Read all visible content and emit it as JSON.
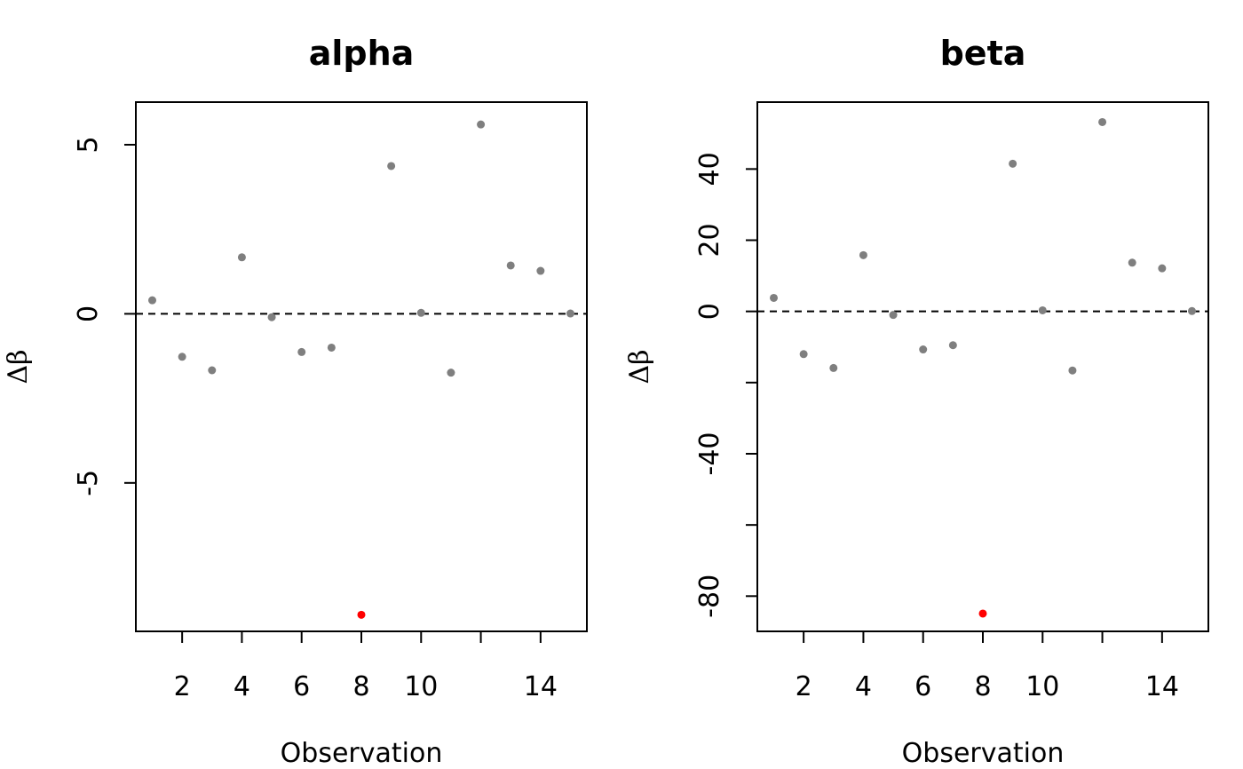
{
  "chart_data": [
    {
      "type": "scatter",
      "title": "alpha",
      "xlabel": "Observation",
      "ylabel": "Δβ",
      "xlim": [
        0.45,
        15.55
      ],
      "ylim": [
        -9.39,
        6.26
      ],
      "x_ticks": [
        2,
        4,
        6,
        8,
        10,
        12,
        14
      ],
      "x_tick_labels": [
        "2",
        "4",
        "6",
        "8",
        "10",
        "",
        "14"
      ],
      "y_ticks": [
        -5,
        0,
        5
      ],
      "y_tick_labels": [
        "-5",
        "0",
        "5"
      ],
      "reference_line": {
        "y": 0,
        "style": "dashed"
      },
      "point_color": "#7f7f7f",
      "highlight_color": "#ff0000",
      "highlight_indices": [
        7
      ],
      "grid": false,
      "points": [
        {
          "x": 1,
          "y": 0.4
        },
        {
          "x": 2,
          "y": -1.27
        },
        {
          "x": 3,
          "y": -1.67
        },
        {
          "x": 4,
          "y": 1.67
        },
        {
          "x": 5,
          "y": -0.1
        },
        {
          "x": 6,
          "y": -1.13
        },
        {
          "x": 7,
          "y": -1.0
        },
        {
          "x": 8,
          "y": -8.9
        },
        {
          "x": 9,
          "y": 4.37
        },
        {
          "x": 10,
          "y": 0.03
        },
        {
          "x": 11,
          "y": -1.74
        },
        {
          "x": 12,
          "y": 5.6
        },
        {
          "x": 13,
          "y": 1.43
        },
        {
          "x": 14,
          "y": 1.27
        },
        {
          "x": 15,
          "y": 0.01
        }
      ]
    },
    {
      "type": "scatter",
      "title": "beta",
      "xlabel": "Observation",
      "ylabel": "Δβ",
      "xlim": [
        0.45,
        15.55
      ],
      "ylim": [
        -89.9,
        58.8
      ],
      "x_ticks": [
        2,
        4,
        6,
        8,
        10,
        12,
        14
      ],
      "x_tick_labels": [
        "2",
        "4",
        "6",
        "8",
        "10",
        "",
        "14"
      ],
      "y_ticks": [
        -80,
        -60,
        -40,
        -20,
        0,
        20,
        40
      ],
      "y_tick_labels": [
        "-80",
        "",
        "-40",
        "",
        "0",
        "20",
        "40"
      ],
      "reference_line": {
        "y": 0,
        "style": "dashed"
      },
      "point_color": "#7f7f7f",
      "highlight_color": "#ff0000",
      "highlight_indices": [
        7
      ],
      "grid": false,
      "points": [
        {
          "x": 1,
          "y": 3.8
        },
        {
          "x": 2,
          "y": -12.0
        },
        {
          "x": 3,
          "y": -15.9
        },
        {
          "x": 4,
          "y": 15.8
        },
        {
          "x": 5,
          "y": -1.0
        },
        {
          "x": 6,
          "y": -10.7
        },
        {
          "x": 7,
          "y": -9.5
        },
        {
          "x": 8,
          "y": -84.9
        },
        {
          "x": 9,
          "y": 41.5
        },
        {
          "x": 10,
          "y": 0.3
        },
        {
          "x": 11,
          "y": -16.6
        },
        {
          "x": 12,
          "y": 53.2
        },
        {
          "x": 13,
          "y": 13.7
        },
        {
          "x": 14,
          "y": 12.1
        },
        {
          "x": 15,
          "y": 0.1
        }
      ]
    }
  ]
}
